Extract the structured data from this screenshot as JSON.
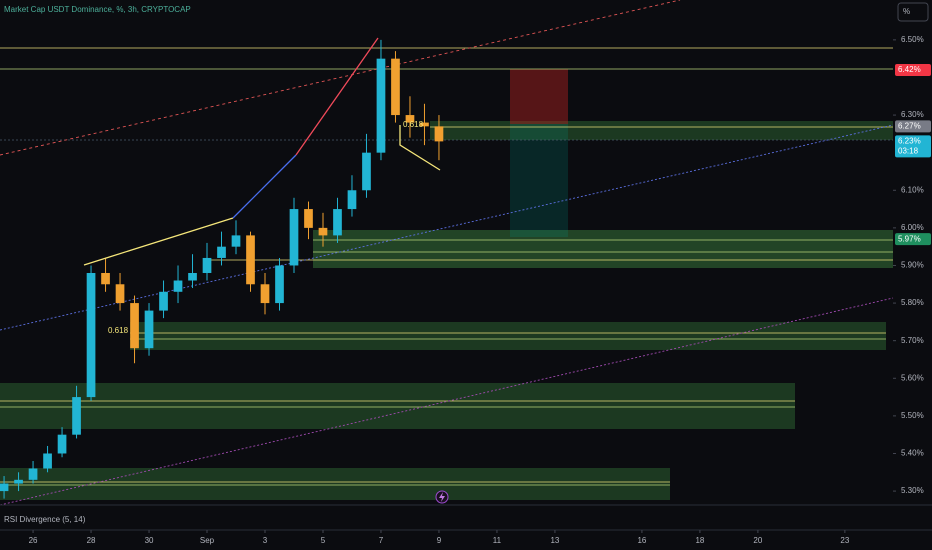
{
  "chart_data": {
    "type": "candlestick",
    "title": "Market Cap USDT Dominance, %, 3h, CRYPTOCAP",
    "indicator": "RSI Divergence (5, 14)",
    "scale_button": "%",
    "fib_labels": [
      "0.618",
      "0.618"
    ],
    "countdown": "03:18",
    "x": [
      -1,
      -0.5,
      0,
      0.5,
      1,
      1.5,
      2,
      2.5,
      3,
      3.5,
      4,
      4.5,
      5,
      5.5,
      6,
      6.5,
      7,
      7.5,
      8,
      8.5,
      9,
      9.5,
      10,
      10.5,
      11,
      11.5,
      12,
      12.5,
      13,
      13.5,
      14
    ],
    "open": [
      5.3,
      5.32,
      5.33,
      5.36,
      5.4,
      5.45,
      5.55,
      5.88,
      5.85,
      5.8,
      5.68,
      5.78,
      5.83,
      5.86,
      5.88,
      5.92,
      5.95,
      5.98,
      5.85,
      5.8,
      5.9,
      6.05,
      6.0,
      5.98,
      6.05,
      6.1,
      6.2,
      6.45,
      6.3,
      6.28,
      6.27
    ],
    "high": [
      5.34,
      5.35,
      5.38,
      5.42,
      5.47,
      5.58,
      5.9,
      5.92,
      5.88,
      5.82,
      5.8,
      5.86,
      5.9,
      5.93,
      5.96,
      5.99,
      6.02,
      5.99,
      5.88,
      5.92,
      6.08,
      6.07,
      6.04,
      6.08,
      6.14,
      6.25,
      6.5,
      6.47,
      6.35,
      6.33,
      6.3
    ],
    "low": [
      5.28,
      5.3,
      5.32,
      5.35,
      5.39,
      5.44,
      5.54,
      5.83,
      5.78,
      5.64,
      5.66,
      5.76,
      5.8,
      5.84,
      5.86,
      5.9,
      5.93,
      5.83,
      5.77,
      5.78,
      5.88,
      5.97,
      5.95,
      5.96,
      6.03,
      6.08,
      6.18,
      6.28,
      6.24,
      6.22,
      6.18
    ],
    "close": [
      5.32,
      5.33,
      5.36,
      5.4,
      5.45,
      5.55,
      5.88,
      5.85,
      5.8,
      5.68,
      5.78,
      5.83,
      5.86,
      5.88,
      5.92,
      5.95,
      5.98,
      5.85,
      5.8,
      5.9,
      6.05,
      6.0,
      5.98,
      6.05,
      6.1,
      6.2,
      6.45,
      6.3,
      6.28,
      6.27,
      6.23
    ],
    "up_color": "#22b5d4",
    "down_color": "#f0a030",
    "xlim": [
      -1.14,
      29.66
    ],
    "ylim": [
      5.263,
      6.606
    ],
    "xticks": [
      {
        "value": 0,
        "label": "26"
      },
      {
        "value": 2,
        "label": "28"
      },
      {
        "value": 4,
        "label": "30"
      },
      {
        "value": 6,
        "label": "Sep"
      },
      {
        "value": 8,
        "label": "3"
      },
      {
        "value": 10,
        "label": "5"
      },
      {
        "value": 12,
        "label": "7"
      },
      {
        "value": 14,
        "label": "9"
      },
      {
        "value": 16,
        "label": "11"
      },
      {
        "value": 18,
        "label": "13"
      },
      {
        "value": 21,
        "label": "16"
      },
      {
        "value": 23,
        "label": "18"
      },
      {
        "value": 25,
        "label": "20"
      },
      {
        "value": 28,
        "label": "23"
      }
    ],
    "yticks": [
      {
        "value": 6.5,
        "label": "6.50%"
      },
      {
        "value": 6.3,
        "label": "6.30%"
      },
      {
        "value": 6.1,
        "label": "6.10%"
      },
      {
        "value": 6.0,
        "label": "6.00%"
      },
      {
        "value": 5.9,
        "label": "5.90%"
      },
      {
        "value": 5.8,
        "label": "5.80%"
      },
      {
        "value": 5.7,
        "label": "5.70%"
      },
      {
        "value": 5.6,
        "label": "5.60%"
      },
      {
        "value": 5.5,
        "label": "5.50%"
      },
      {
        "value": 5.4,
        "label": "5.40%"
      },
      {
        "value": 5.3,
        "label": "5.30%"
      }
    ],
    "price_labels": [
      {
        "value": 6.42,
        "label": "6.42%",
        "color": "#f23645"
      },
      {
        "value": 6.27,
        "label": "6.27%",
        "color": "#787b86"
      },
      {
        "value": 6.23,
        "label": "6.23%",
        "color": "#22b5d4"
      },
      {
        "value": 5.97,
        "label": "5.97%",
        "color": "#1f8f5f"
      }
    ]
  }
}
